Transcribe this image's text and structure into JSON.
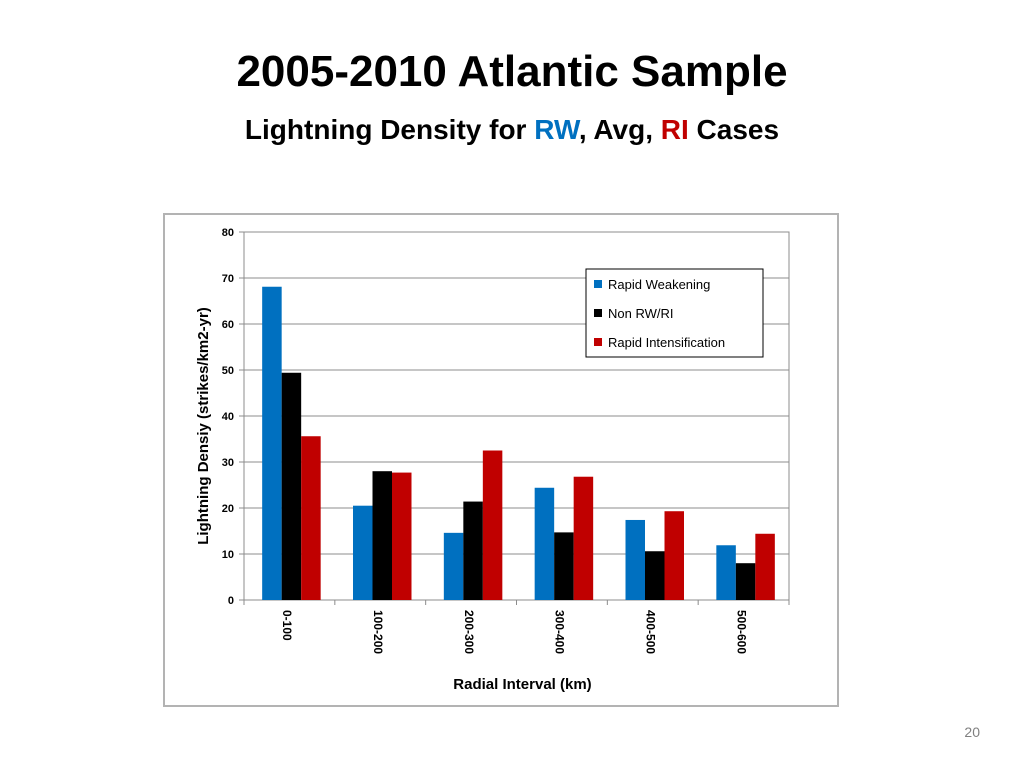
{
  "slide": {
    "title": "2005-2010 Atlantic Sample",
    "subtitle": {
      "part1": "Lightning Density for ",
      "rw": "RW",
      "part2": ", Avg, ",
      "ri": "RI",
      "part3": " Cases"
    },
    "subtitle_colors": {
      "rw": "#0070c0",
      "ri": "#c00000"
    },
    "page_number": "20"
  },
  "chart_data": {
    "type": "bar",
    "title": "",
    "xlabel": "Radial Interval (km)",
    "ylabel": "Lightning Densiy (strikes/km2-yr)",
    "ylim": [
      0,
      80
    ],
    "yticks": [
      0,
      10,
      20,
      30,
      40,
      50,
      60,
      70,
      80
    ],
    "grid": true,
    "legend_position": "top-right",
    "categories": [
      "0-100",
      "100-200",
      "200-300",
      "300-400",
      "400-500",
      "500-600"
    ],
    "series": [
      {
        "name": "Rapid Weakening",
        "color": "#0070c0",
        "values": [
          68.1,
          20.5,
          14.6,
          24.4,
          17.4,
          11.9
        ]
      },
      {
        "name": "Non RW/RI",
        "color": "#000000",
        "values": [
          49.4,
          28.0,
          21.4,
          14.7,
          10.6,
          8.0
        ]
      },
      {
        "name": "Rapid Intensification",
        "color": "#c00000",
        "values": [
          35.6,
          27.7,
          32.5,
          26.8,
          19.3,
          14.4
        ]
      }
    ]
  }
}
